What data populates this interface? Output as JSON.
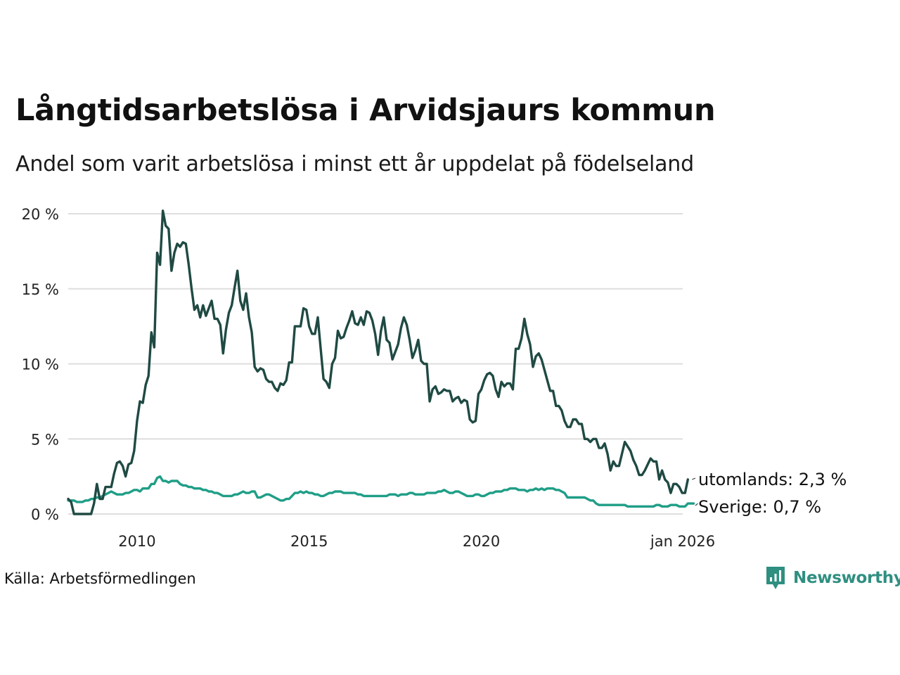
{
  "title": "Långtidsarbetslösa i Arvidsjaurs kommun",
  "subtitle": "Andel som varit arbetslösa i minst ett år uppdelat på födelseland",
  "source": "Källa: Arbetsförmedlingen",
  "brand": {
    "name": "Newsworthy",
    "icon": "newsworthy-logo-icon",
    "color": "#2f8f80"
  },
  "chart_data": {
    "type": "line",
    "title": "Långtidsarbetslösa i Arvidsjaurs kommun",
    "xlabel": "",
    "ylabel": "",
    "x_start": 2008.0,
    "x_step_months": 1,
    "xlim": [
      2008.0,
      2025.85
    ],
    "ylim": [
      0,
      20
    ],
    "grid": true,
    "y_ticks": [
      {
        "value": 0,
        "label": "0 %"
      },
      {
        "value": 5,
        "label": "5 %"
      },
      {
        "value": 10,
        "label": "10 %"
      },
      {
        "value": 15,
        "label": "15 %"
      },
      {
        "value": 20,
        "label": "20 %"
      }
    ],
    "x_ticks": [
      {
        "value": 2010,
        "label": "2010"
      },
      {
        "value": 2015,
        "label": "2015"
      },
      {
        "value": 2020,
        "label": "2020"
      },
      {
        "value": 2025.85,
        "label": "jan 2026"
      }
    ],
    "series": [
      {
        "name": "utomlands",
        "label": "utomlands: 2,3 %",
        "color": "#1f4a43",
        "values": [
          1.0,
          0.8,
          0.0,
          0.0,
          0.0,
          0.0,
          0.0,
          0.0,
          0.0,
          0.7,
          2.0,
          1.0,
          1.0,
          1.8,
          1.8,
          1.8,
          2.7,
          3.4,
          3.5,
          3.2,
          2.5,
          3.3,
          3.4,
          4.2,
          6.2,
          7.5,
          7.4,
          8.6,
          9.2,
          12.1,
          11.1,
          17.4,
          16.6,
          20.2,
          19.2,
          19.0,
          16.2,
          17.4,
          18.0,
          17.8,
          18.1,
          18.0,
          16.6,
          15.0,
          13.6,
          13.9,
          13.1,
          13.9,
          13.2,
          13.7,
          14.2,
          13.0,
          13.0,
          12.6,
          10.7,
          12.3,
          13.4,
          13.9,
          15.1,
          16.2,
          14.2,
          13.6,
          14.7,
          13.1,
          12.1,
          9.8,
          9.5,
          9.7,
          9.6,
          9.0,
          8.8,
          8.8,
          8.4,
          8.2,
          8.7,
          8.6,
          8.9,
          10.1,
          10.1,
          12.5,
          12.5,
          12.5,
          13.7,
          13.6,
          12.5,
          12.0,
          12.0,
          13.1,
          11.0,
          9.0,
          8.8,
          8.4,
          10.0,
          10.4,
          12.2,
          11.7,
          11.8,
          12.4,
          12.9,
          13.5,
          12.7,
          12.6,
          13.1,
          12.6,
          13.5,
          13.4,
          12.9,
          12.0,
          10.6,
          12.2,
          13.1,
          11.6,
          11.4,
          10.3,
          10.8,
          11.3,
          12.4,
          13.1,
          12.6,
          11.6,
          10.4,
          10.9,
          11.6,
          10.2,
          10.0,
          10.0,
          7.5,
          8.3,
          8.5,
          8.0,
          8.1,
          8.3,
          8.2,
          8.2,
          7.5,
          7.7,
          7.8,
          7.4,
          7.6,
          7.5,
          6.3,
          6.1,
          6.2,
          8.0,
          8.3,
          8.9,
          9.3,
          9.4,
          9.2,
          8.3,
          7.8,
          8.8,
          8.5,
          8.7,
          8.7,
          8.3,
          11.0,
          11.0,
          11.7,
          13.0,
          12.0,
          11.3,
          9.8,
          10.5,
          10.7,
          10.3,
          9.6,
          8.9,
          8.2,
          8.2,
          7.2,
          7.2,
          6.9,
          6.2,
          5.8,
          5.8,
          6.3,
          6.3,
          6.0,
          6.0,
          5.0,
          5.0,
          4.8,
          5.0,
          5.0,
          4.4,
          4.4,
          4.7,
          4.0,
          2.9,
          3.5,
          3.2,
          3.2,
          4.0,
          4.8,
          4.5,
          4.2,
          3.6,
          3.2,
          2.6,
          2.6,
          2.9,
          3.3,
          3.7,
          3.5,
          3.5,
          2.3,
          2.9,
          2.3,
          2.1,
          1.4,
          2.0,
          2.0,
          1.8,
          1.4,
          1.4,
          2.3
        ]
      },
      {
        "name": "Sverige",
        "label": "Sverige: 0,7 %",
        "color": "#1f9e87",
        "values": [
          0.9,
          0.9,
          0.9,
          0.8,
          0.8,
          0.8,
          0.9,
          0.9,
          1.0,
          1.0,
          1.1,
          1.1,
          1.2,
          1.3,
          1.4,
          1.5,
          1.4,
          1.3,
          1.3,
          1.3,
          1.4,
          1.4,
          1.5,
          1.6,
          1.6,
          1.5,
          1.7,
          1.7,
          1.7,
          2.0,
          2.0,
          2.4,
          2.5,
          2.2,
          2.2,
          2.1,
          2.2,
          2.2,
          2.2,
          2.0,
          1.9,
          1.9,
          1.8,
          1.8,
          1.7,
          1.7,
          1.7,
          1.6,
          1.6,
          1.5,
          1.5,
          1.4,
          1.4,
          1.3,
          1.2,
          1.2,
          1.2,
          1.2,
          1.3,
          1.3,
          1.4,
          1.5,
          1.4,
          1.4,
          1.5,
          1.5,
          1.1,
          1.1,
          1.2,
          1.3,
          1.3,
          1.2,
          1.1,
          1.0,
          0.9,
          0.9,
          1.0,
          1.0,
          1.2,
          1.4,
          1.4,
          1.5,
          1.4,
          1.5,
          1.4,
          1.4,
          1.3,
          1.3,
          1.2,
          1.2,
          1.3,
          1.4,
          1.4,
          1.5,
          1.5,
          1.5,
          1.4,
          1.4,
          1.4,
          1.4,
          1.4,
          1.3,
          1.3,
          1.2,
          1.2,
          1.2,
          1.2,
          1.2,
          1.2,
          1.2,
          1.2,
          1.2,
          1.3,
          1.3,
          1.3,
          1.2,
          1.3,
          1.3,
          1.3,
          1.4,
          1.4,
          1.3,
          1.3,
          1.3,
          1.3,
          1.4,
          1.4,
          1.4,
          1.4,
          1.5,
          1.5,
          1.6,
          1.5,
          1.4,
          1.4,
          1.5,
          1.5,
          1.4,
          1.3,
          1.2,
          1.2,
          1.2,
          1.3,
          1.3,
          1.2,
          1.2,
          1.3,
          1.4,
          1.4,
          1.5,
          1.5,
          1.5,
          1.6,
          1.6,
          1.7,
          1.7,
          1.7,
          1.6,
          1.6,
          1.6,
          1.5,
          1.6,
          1.6,
          1.7,
          1.6,
          1.7,
          1.6,
          1.7,
          1.7,
          1.7,
          1.6,
          1.6,
          1.5,
          1.4,
          1.1,
          1.1,
          1.1,
          1.1,
          1.1,
          1.1,
          1.1,
          1.0,
          0.9,
          0.9,
          0.7,
          0.6,
          0.6,
          0.6,
          0.6,
          0.6,
          0.6,
          0.6,
          0.6,
          0.6,
          0.6,
          0.5,
          0.5,
          0.5,
          0.5,
          0.5,
          0.5,
          0.5,
          0.5,
          0.5,
          0.5,
          0.6,
          0.6,
          0.5,
          0.5,
          0.5,
          0.6,
          0.6,
          0.6,
          0.5,
          0.5,
          0.5,
          0.7,
          0.7,
          0.7
        ]
      }
    ]
  }
}
